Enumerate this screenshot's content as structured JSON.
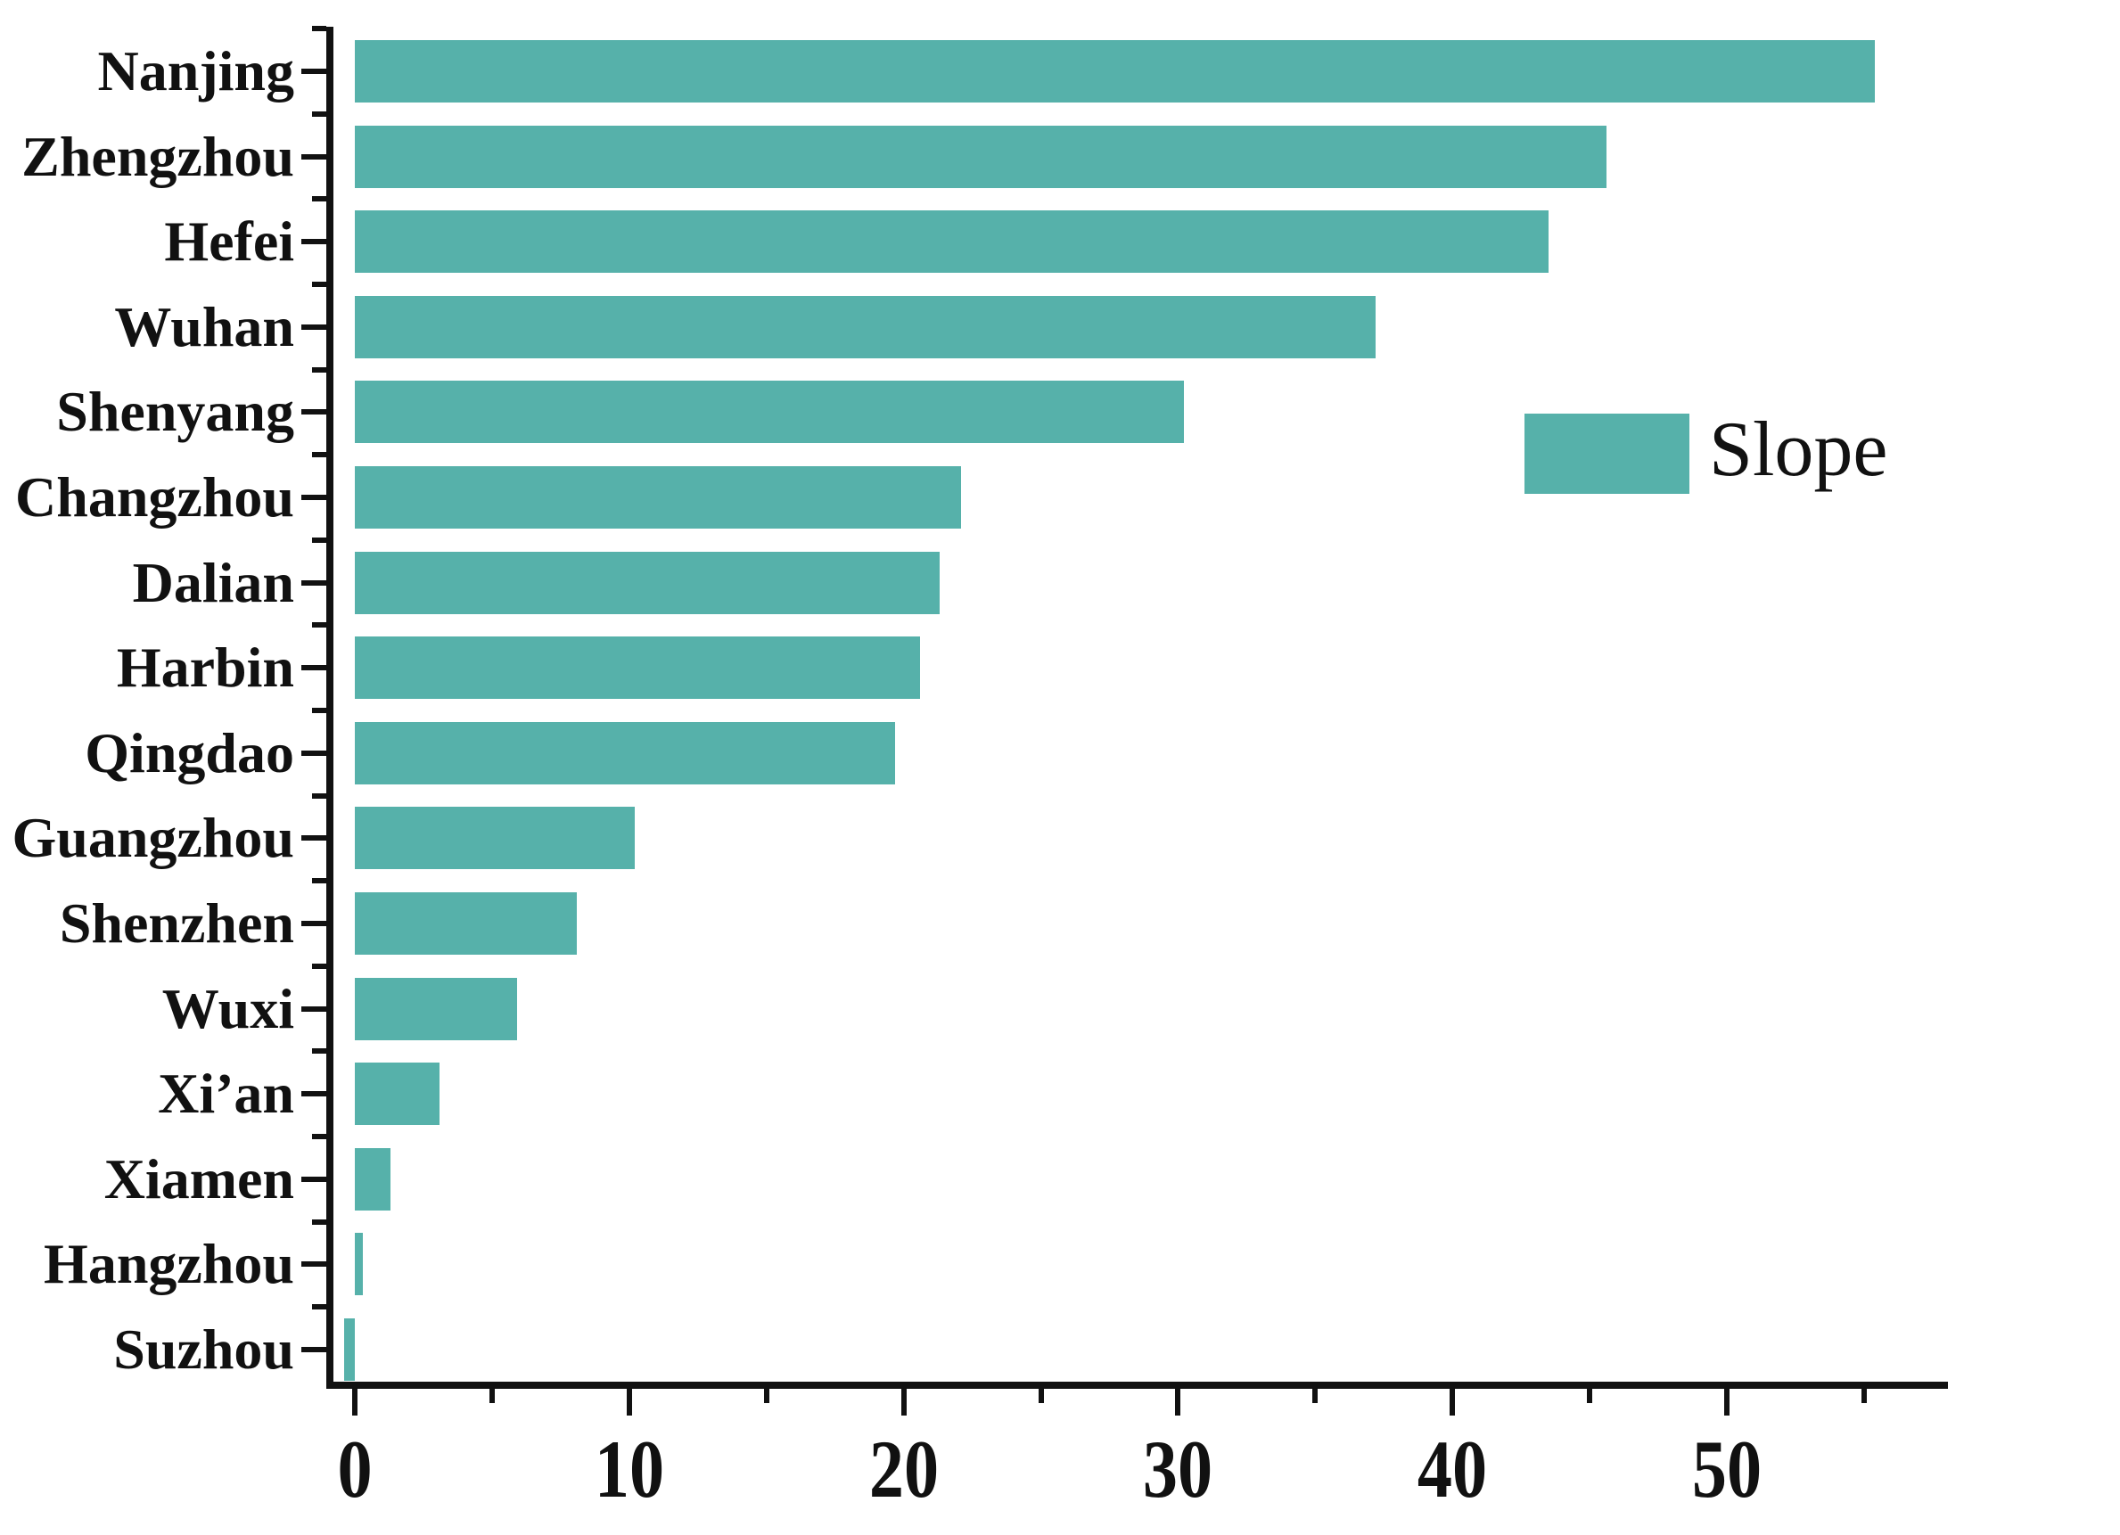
{
  "chart_data": {
    "type": "bar",
    "orientation": "horizontal",
    "title": "",
    "xlabel": "",
    "ylabel": "",
    "categories": [
      "Nanjing",
      "Zhengzhou",
      "Hefei",
      "Wuhan",
      "Shenyang",
      "Changzhou",
      "Dalian",
      "Harbin",
      "Qingdao",
      "Guangzhou",
      "Shenzhen",
      "Wuxi",
      "Xi’an",
      "Xiamen",
      "Hangzhou",
      "Suzhou"
    ],
    "series": [
      {
        "name": "Slope",
        "values": [
          55.4,
          45.6,
          43.5,
          37.2,
          30.2,
          22.1,
          21.3,
          20.6,
          19.7,
          10.2,
          8.1,
          5.9,
          3.1,
          1.3,
          0.3,
          -0.4
        ]
      }
    ],
    "legend": {
      "label": "Slope",
      "position": "center-right"
    },
    "xlim": [
      -1,
      58
    ],
    "x_major_ticks": [
      0,
      10,
      20,
      30,
      40,
      50
    ],
    "x_minor_ticks": [
      5,
      15,
      25,
      35,
      45,
      55
    ],
    "grid": false,
    "colors": {
      "bar": "#56b1aa",
      "axis": "#111111",
      "background": "#ffffff"
    }
  }
}
